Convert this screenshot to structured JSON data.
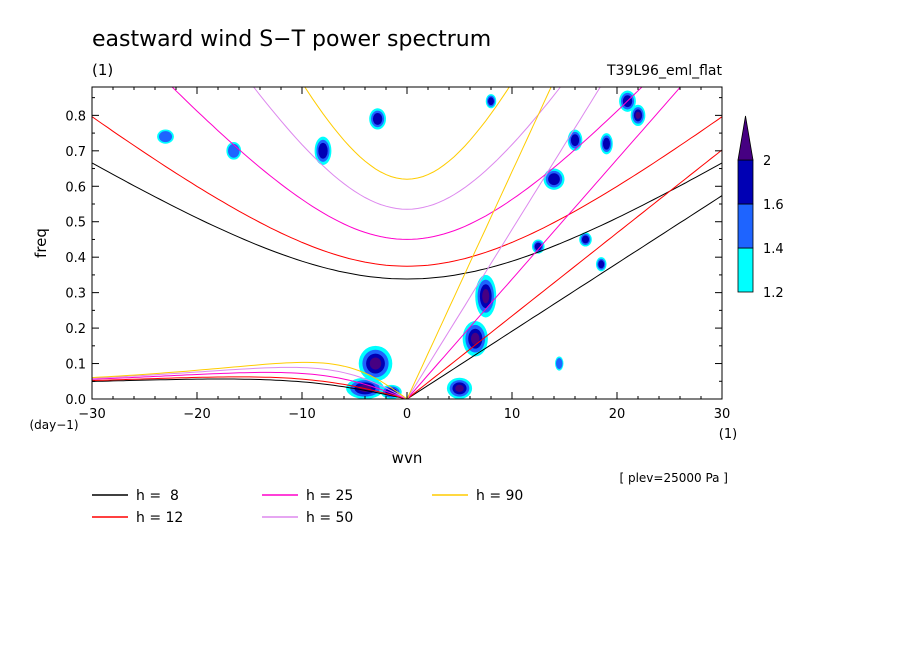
{
  "chart_data": {
    "type": "heatmap",
    "title": "eastward wind S−T power spectrum",
    "subtitle": "(1)",
    "run_label": "T39L96_eml_flat",
    "xlabel": "wvn",
    "ylabel": "freq",
    "x_unit": "(1)",
    "y_unit": "(day−1)",
    "level_note": "[ plev=25000 Pa ]",
    "xlim": [
      -30,
      30
    ],
    "ylim": [
      0,
      0.88
    ],
    "x_ticks": [
      -30,
      -20,
      -10,
      0,
      10,
      20,
      30
    ],
    "x_tick_labels": [
      "−30",
      "−20",
      "−10",
      "0",
      "10",
      "20",
      "30"
    ],
    "y_ticks": [
      0.0,
      0.1,
      0.2,
      0.3,
      0.4,
      0.5,
      0.6,
      0.7,
      0.8
    ],
    "y_tick_labels": [
      "0.0",
      "0.1",
      "0.2",
      "0.3",
      "0.4",
      "0.5",
      "0.6",
      "0.7",
      "0.8"
    ],
    "colorbar": {
      "levels": [
        1.2,
        1.4,
        1.6,
        2
      ],
      "labels": [
        "1.2",
        "1.4",
        "1.6",
        "2"
      ],
      "colors": [
        "#00ffff",
        "#1e64ff",
        "#0000b4",
        "#460082"
      ]
    },
    "dispersion_curves": [
      {
        "name": "h =  8",
        "h": 8,
        "color": "#000000"
      },
      {
        "name": "h = 12",
        "h": 12,
        "color": "#ff0000"
      },
      {
        "name": "h = 25",
        "h": 25,
        "color": "#ff00cc"
      },
      {
        "name": "h = 50",
        "h": 50,
        "color": "#dd88ee"
      },
      {
        "name": "h = 90",
        "h": 90,
        "color": "#ffcc00"
      }
    ],
    "spectral_blobs": [
      {
        "k": -3,
        "f": 0.1,
        "rk": 1.6,
        "rf": 0.05,
        "level": 4
      },
      {
        "k": -4,
        "f": 0.03,
        "rk": 1.8,
        "rf": 0.03,
        "level": 4
      },
      {
        "k": -1.5,
        "f": 0.02,
        "rk": 1.0,
        "rf": 0.02,
        "level": 3
      },
      {
        "k": 5,
        "f": 0.03,
        "rk": 1.2,
        "rf": 0.03,
        "level": 4
      },
      {
        "k": 6.5,
        "f": 0.17,
        "rk": 1.2,
        "rf": 0.05,
        "level": 4
      },
      {
        "k": 7.5,
        "f": 0.29,
        "rk": 1.0,
        "rf": 0.06,
        "level": 4
      },
      {
        "k": -8,
        "f": 0.7,
        "rk": 0.8,
        "rf": 0.04,
        "level": 3
      },
      {
        "k": -2.8,
        "f": 0.79,
        "rk": 0.8,
        "rf": 0.03,
        "level": 3
      },
      {
        "k": 14,
        "f": 0.62,
        "rk": 1.0,
        "rf": 0.03,
        "level": 3
      },
      {
        "k": 16,
        "f": 0.73,
        "rk": 0.7,
        "rf": 0.03,
        "level": 3
      },
      {
        "k": 19,
        "f": 0.72,
        "rk": 0.6,
        "rf": 0.03,
        "level": 3
      },
      {
        "k": 21,
        "f": 0.84,
        "rk": 0.8,
        "rf": 0.03,
        "level": 3
      },
      {
        "k": 22,
        "f": 0.8,
        "rk": 0.7,
        "rf": 0.03,
        "level": 4
      },
      {
        "k": 18.5,
        "f": 0.38,
        "rk": 0.5,
        "rf": 0.02,
        "level": 3
      },
      {
        "k": 17,
        "f": 0.45,
        "rk": 0.6,
        "rf": 0.02,
        "level": 3
      },
      {
        "k": 12.5,
        "f": 0.43,
        "rk": 0.6,
        "rf": 0.02,
        "level": 3
      },
      {
        "k": 8,
        "f": 0.84,
        "rk": 0.5,
        "rf": 0.02,
        "level": 3
      },
      {
        "k": -16.5,
        "f": 0.7,
        "rk": 0.7,
        "rf": 0.025,
        "level": 2
      },
      {
        "k": -23,
        "f": 0.74,
        "rk": 0.8,
        "rf": 0.02,
        "level": 2
      },
      {
        "k": 14.5,
        "f": 0.1,
        "rk": 0.4,
        "rf": 0.02,
        "level": 2
      }
    ]
  }
}
